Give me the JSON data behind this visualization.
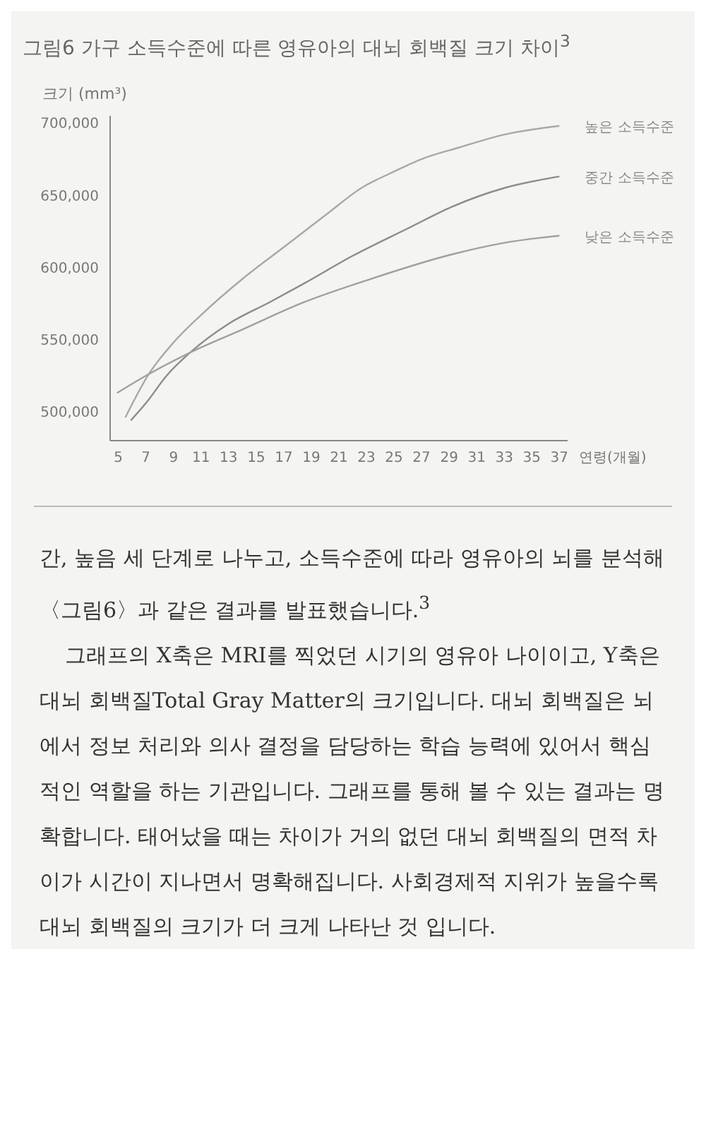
{
  "chart_data": {
    "type": "line",
    "title": "그림6 가구 소득수준에 따른 영유아의 대뇌 회백질 크기 차이$^{3}$",
    "ylabel": "크기 (mm³)",
    "xlabel": "연령(개월)",
    "xlim": [
      4.4,
      37.6
    ],
    "ylim": [
      480000,
      705000
    ],
    "xticks": [
      5,
      7,
      9,
      11,
      13,
      15,
      17,
      19,
      21,
      23,
      25,
      27,
      29,
      31,
      33,
      35,
      37
    ],
    "yticks": [
      {
        "value": 500000,
        "label": "500,000"
      },
      {
        "value": 550000,
        "label": "550,000"
      },
      {
        "value": 600000,
        "label": "600,000"
      },
      {
        "value": 650000,
        "label": "650,000"
      },
      {
        "value": 700000,
        "label": "700,000"
      }
    ],
    "grid": false,
    "legend": false,
    "marker": "none",
    "line_style": "solid",
    "series": [
      {
        "name": "높은 소득수준",
        "color": "#a8a8a8",
        "x": [
          5.5,
          7.2,
          9,
          11,
          14,
          17,
          20,
          22.8,
          24.7,
          27,
          29.7,
          33,
          37
        ],
        "values": [
          496000,
          526000,
          548000,
          567000,
          592000,
          614000,
          636000,
          656000,
          665000,
          675000,
          683000,
          692000,
          698000
        ]
      },
      {
        "name": "중간 소득수준",
        "color": "#8c8c8c",
        "x": [
          5.9,
          7,
          8.5,
          10.2,
          13,
          16,
          18.5,
          22,
          26,
          29.2,
          33,
          37
        ],
        "values": [
          494000,
          506000,
          525000,
          541000,
          561000,
          576000,
          589000,
          608000,
          627000,
          642000,
          655000,
          663000
        ]
      },
      {
        "name": "낮은 소득수준",
        "color": "#a0a0a0",
        "x": [
          4.9,
          7,
          10.2,
          14,
          18.5,
          23,
          29.2,
          33,
          37
        ],
        "values": [
          513000,
          525000,
          541000,
          557000,
          576000,
          591000,
          609000,
          617000,
          622000
        ]
      }
    ],
    "annotations": [
      "간, 높음 세 단계로 나누고, 소득수준에 따라 영유아의 뇌를 분석해 〈그림6〉과 같은 결과를 발표했습니다.$^{3}$",
      "그래프의 X축은 MRI를 찍었던 시기의 영유아 나이이고, Y축은 대뇌 회백질Total Gray Matter의 크기입니다. 대뇌 회백질은 뇌에서 정보 처리와 의사 결정을 담당하는 학습 능력에 있어서 핵심적인 역할을 하는 기관입니다. 그래프를 통해 볼 수 있는 결과는 명확합니다. 태어났을 때는 차이가 거의 없던 대뇌 회백질의 면적 차이가 시간이 지나면서 명확해집니다. 사회경제적 지위가 높을수록 대뇌 회백질의 크기가 더 크게 나타난 것 입니다."
    ]
  }
}
